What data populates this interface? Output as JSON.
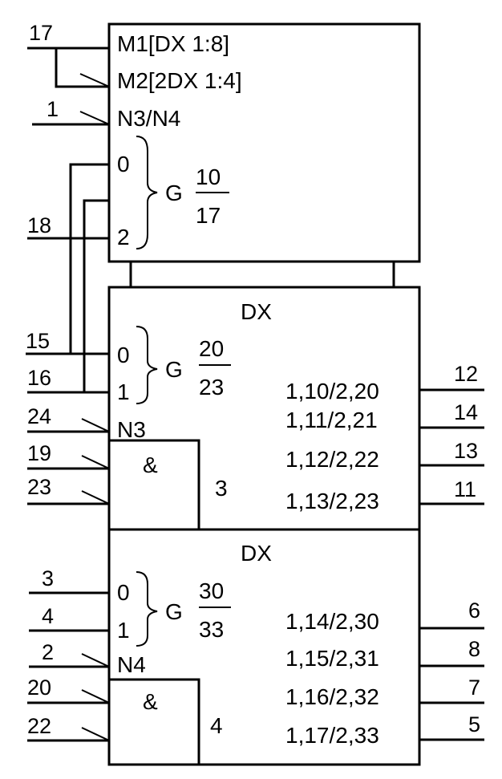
{
  "control_block": {
    "mode1": "M1[DX 1:8]",
    "mode2": "M2[2DX 1:4]",
    "n34": "N3/N4",
    "g_in0": "0",
    "g_in2": "2",
    "g_label": "G",
    "g_num": "10",
    "g_den": "17",
    "pins": {
      "m1": "17",
      "n34": "1",
      "g2": "18"
    }
  },
  "dx_block_1": {
    "title": "DX",
    "in0": "0",
    "in1": "1",
    "g_label": "G",
    "g_num": "20",
    "g_den": "23",
    "enable": "N3",
    "and_symbol": "&",
    "and_ref": "3",
    "outputs": [
      "1,10/2,20",
      "1,11/2,21",
      "1,12/2,22",
      "1,13/2,23"
    ],
    "in_pins": {
      "sel0": "15",
      "sel1": "16",
      "n3": "24",
      "and_a": "19",
      "and_b": "23"
    },
    "out_pins": [
      "12",
      "14",
      "13",
      "11"
    ]
  },
  "dx_block_2": {
    "title": "DX",
    "in0": "0",
    "in1": "1",
    "g_label": "G",
    "g_num": "30",
    "g_den": "33",
    "enable": "N4",
    "and_symbol": "&",
    "and_ref": "4",
    "outputs": [
      "1,14/2,30",
      "1,15/2,31",
      "1,16/2,32",
      "1,17/2,33"
    ],
    "in_pins": {
      "sel0": "3",
      "sel1": "4",
      "n4": "2",
      "and_a": "20",
      "and_b": "22"
    },
    "out_pins": [
      "6",
      "8",
      "7",
      "5"
    ]
  }
}
